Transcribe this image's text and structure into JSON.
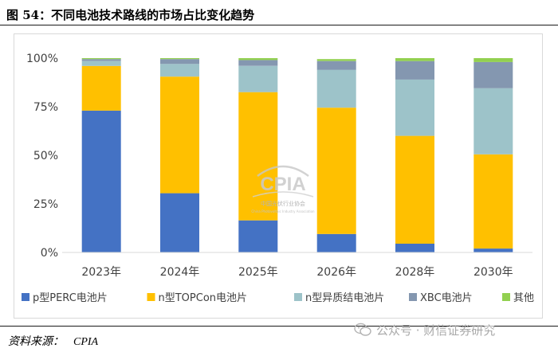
{
  "header": {
    "title": "图 54：不同电池技术路线的市场占比变化趋势"
  },
  "footer": {
    "source_label": "资料来源：",
    "source_value": "CPIA",
    "watermark": "公众号 · 财信证券研究"
  },
  "logo": {
    "name": "CPIA",
    "subtitle": "中国光伏行业协会",
    "subtitle_en": "China Photovoltaic Industry Association"
  },
  "chart_data": {
    "type": "bar",
    "stacked": true,
    "categories": [
      "2023年",
      "2024年",
      "2025年",
      "2026年",
      "2028年",
      "2030年"
    ],
    "series": [
      {
        "name": "p型PERC电池片",
        "color": "#4472c4",
        "values": [
          73,
          30.5,
          16.5,
          9.5,
          4.5,
          2
        ]
      },
      {
        "name": "n型TOPCon电池片",
        "color": "#ffc000",
        "values": [
          23,
          60,
          66,
          65,
          55.5,
          48.5
        ]
      },
      {
        "name": "n型异质结电池片",
        "color": "#9dc3c9",
        "values": [
          2.5,
          6.5,
          13.5,
          19.5,
          29,
          34
        ]
      },
      {
        "name": "XBC电池片",
        "color": "#8497b0",
        "values": [
          1,
          2.5,
          3,
          4.5,
          9.5,
          13.5
        ]
      },
      {
        "name": "其他",
        "color": "#92d050",
        "values": [
          0.5,
          0.5,
          1,
          1,
          1.5,
          2
        ]
      }
    ],
    "yticks": [
      "0%",
      "25%",
      "50%",
      "75%",
      "100%"
    ],
    "ylim": [
      0,
      100
    ],
    "grid": false,
    "legend_position": "bottom"
  }
}
